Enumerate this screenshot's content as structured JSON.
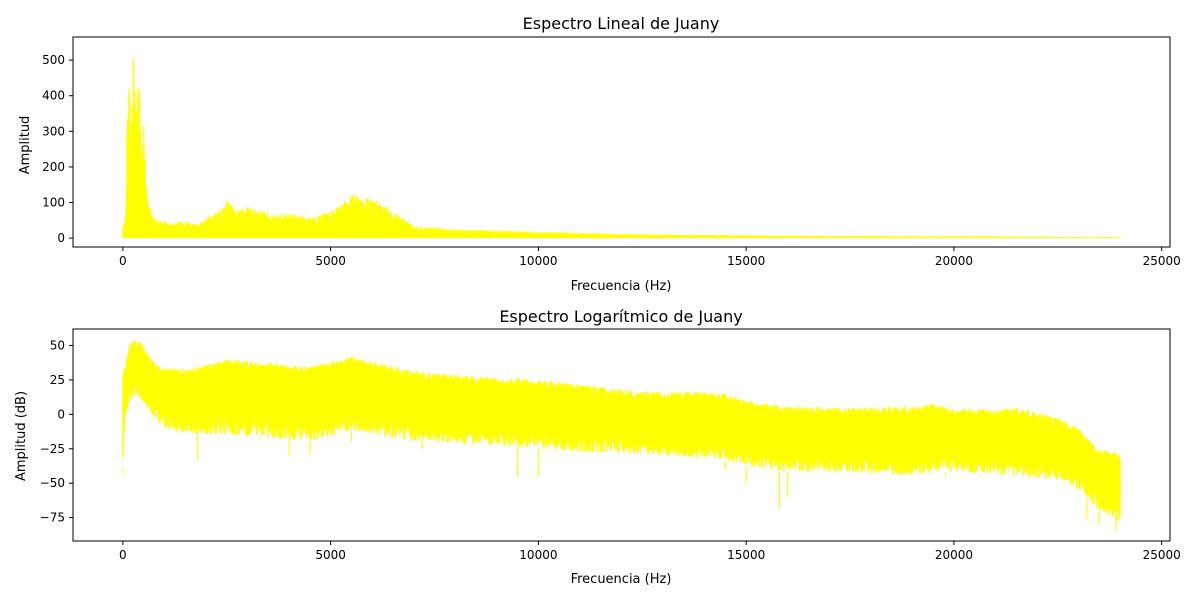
{
  "chart_data": [
    {
      "type": "line",
      "title": "Espectro Lineal de Juany",
      "xlabel": "Frecuencia (Hz)",
      "ylabel": "Amplitud",
      "xlim": [
        -1200,
        25200
      ],
      "ylim": [
        -25,
        565
      ],
      "xticks": [
        0,
        5000,
        10000,
        15000,
        20000,
        25000
      ],
      "yticks": [
        0,
        100,
        200,
        300,
        400,
        500
      ],
      "xtick_labels": [
        "0",
        "5000",
        "10000",
        "15000",
        "20000",
        "25000"
      ],
      "ytick_labels": [
        "0",
        "100",
        "200",
        "300",
        "400",
        "500"
      ],
      "grid": false,
      "series": [
        {
          "color": "#ffff00",
          "envelope_x": [
            0,
            60,
            100,
            150,
            200,
            250,
            300,
            350,
            400,
            450,
            500,
            550,
            600,
            700,
            800,
            1000,
            1200,
            1500,
            1800,
            2000,
            2200,
            2400,
            2500,
            2700,
            3000,
            3300,
            3600,
            4000,
            4500,
            5000,
            5300,
            5500,
            5800,
            6000,
            6300,
            6700,
            7000,
            7500,
            8000,
            9000,
            10000,
            11000,
            12000,
            13000,
            14000,
            15000,
            16000,
            17000,
            18000,
            19000,
            20000,
            21000,
            22000,
            23000,
            24000
          ],
          "envelope_y": [
            30,
            55,
            300,
            490,
            300,
            545,
            400,
            460,
            440,
            250,
            335,
            170,
            120,
            70,
            50,
            50,
            40,
            50,
            40,
            55,
            70,
            85,
            110,
            80,
            90,
            80,
            65,
            70,
            60,
            75,
            100,
            130,
            110,
            115,
            90,
            60,
            35,
            30,
            25,
            22,
            18,
            15,
            12,
            10,
            9,
            8,
            7,
            6,
            6,
            5,
            5,
            5,
            4,
            3,
            3
          ]
        }
      ]
    },
    {
      "type": "line",
      "title": "Espectro Logarítmico de Juany",
      "xlabel": "Frecuencia (Hz)",
      "ylabel": "Amplitud (dB)",
      "xlim": [
        -1200,
        25200
      ],
      "ylim": [
        -92,
        62
      ],
      "xticks": [
        0,
        5000,
        10000,
        15000,
        20000,
        25000
      ],
      "yticks": [
        -75,
        -50,
        -25,
        0,
        25,
        50
      ],
      "xtick_labels": [
        "0",
        "5000",
        "10000",
        "15000",
        "20000",
        "25000"
      ],
      "ytick_labels": [
        "−75",
        "−50",
        "−25",
        "0",
        "25",
        "50"
      ],
      "grid": false,
      "series": [
        {
          "color": "#ffff00",
          "upper_x": [
            0,
            50,
            150,
            300,
            500,
            700,
            900,
            1500,
            2500,
            3500,
            4500,
            5500,
            6500,
            7500,
            8500,
            10000,
            11000,
            12000,
            13000,
            14000,
            14500,
            15000,
            16000,
            17000,
            18000,
            19000,
            19500,
            20000,
            21000,
            21500,
            22500,
            23000,
            23500,
            24000
          ],
          "upper_y": [
            30,
            35,
            52,
            55,
            50,
            40,
            35,
            33,
            40,
            38,
            35,
            42,
            35,
            30,
            28,
            25,
            22,
            18,
            16,
            17,
            15,
            10,
            6,
            5,
            5,
            6,
            8,
            4,
            4,
            5,
            -2,
            -10,
            -25,
            -28
          ],
          "lower_x": [
            0,
            50,
            150,
            300,
            500,
            700,
            900,
            1500,
            2500,
            3500,
            4500,
            5500,
            6500,
            7500,
            8500,
            10000,
            11000,
            12000,
            13000,
            14000,
            14500,
            15000,
            16000,
            17000,
            18000,
            19000,
            19500,
            20000,
            21000,
            21500,
            22500,
            23000,
            23500,
            24000
          ],
          "lower_y": [
            -40,
            -5,
            10,
            12,
            8,
            0,
            -8,
            -15,
            -15,
            -18,
            -20,
            -12,
            -18,
            -20,
            -22,
            -25,
            -28,
            -28,
            -30,
            -32,
            -34,
            -38,
            -42,
            -42,
            -43,
            -45,
            -42,
            -42,
            -44,
            -45,
            -48,
            -55,
            -70,
            -80
          ],
          "spikes": [
            [
              0,
              -44
            ],
            [
              1800,
              -33
            ],
            [
              4000,
              -30
            ],
            [
              4500,
              -29
            ],
            [
              5500,
              -20
            ],
            [
              7200,
              -25
            ],
            [
              9500,
              -45
            ],
            [
              10000,
              -45
            ],
            [
              14500,
              -40
            ],
            [
              15000,
              -50
            ],
            [
              15800,
              -68
            ],
            [
              16000,
              -60
            ],
            [
              17200,
              -42
            ],
            [
              19800,
              -45
            ],
            [
              23200,
              -76
            ],
            [
              23500,
              -80
            ],
            [
              23900,
              -85
            ]
          ]
        }
      ]
    }
  ]
}
